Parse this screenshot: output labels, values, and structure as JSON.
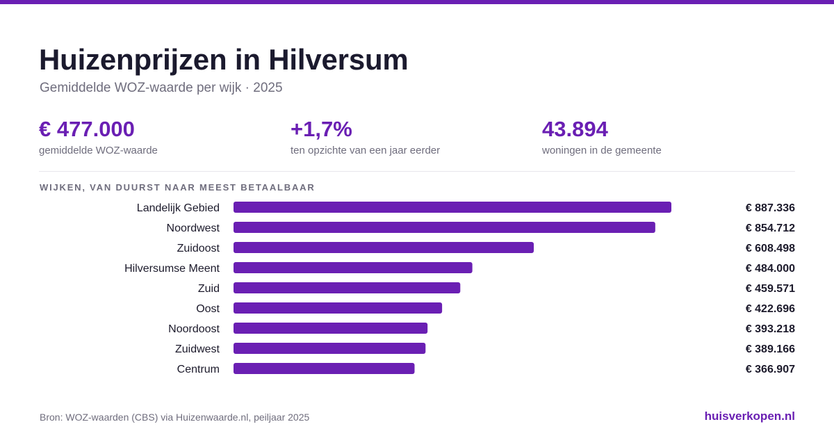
{
  "header": {
    "title": "Huizenprijzen in Hilversum",
    "subtitle": "Gemiddelde WOZ-waarde per wijk · 2025"
  },
  "kpis": [
    {
      "value": "€ 477.000",
      "label": "gemiddelde WOZ-waarde"
    },
    {
      "value": "+1,7%",
      "label": "ten opzichte van een jaar eerder"
    },
    {
      "value": "43.894",
      "label": "woningen in de gemeente"
    }
  ],
  "section_label": "WIJKEN, VAN DUURST NAAR MEEST BETAALBAAR",
  "chart_data": {
    "type": "bar",
    "orientation": "horizontal",
    "categories": [
      "Landelijk Gebied",
      "Noordwest",
      "Zuidoost",
      "Hilversumse Meent",
      "Zuid",
      "Oost",
      "Noordoost",
      "Zuidwest",
      "Centrum"
    ],
    "values": [
      887336,
      854712,
      608498,
      484000,
      459571,
      422696,
      393218,
      389166,
      366907
    ],
    "value_labels": [
      "€ 887.336",
      "€ 854.712",
      "€ 608.498",
      "€ 484.000",
      "€ 459.571",
      "€ 422.696",
      "€ 393.218",
      "€ 389.166",
      "€ 366.907"
    ],
    "title": "",
    "xlabel": "",
    "ylabel": "",
    "grid": false,
    "color": "#6a1fb3"
  },
  "footer": {
    "source": "Bron: WOZ-waarden (CBS) via Huizenwaarde.nl, peiljaar 2025",
    "brand": "huisverkopen.nl"
  },
  "colors": {
    "accent": "#6a1fb3",
    "text": "#1c1a2b",
    "muted": "#6f6d7d"
  }
}
